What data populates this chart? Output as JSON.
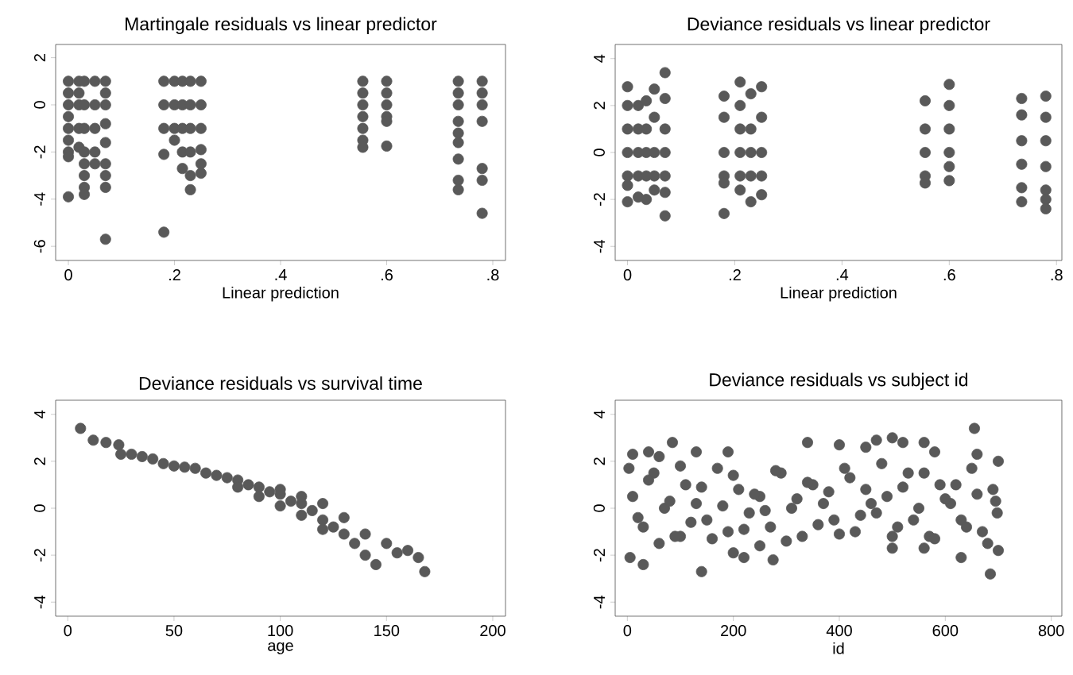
{
  "chart_data": [
    {
      "type": "scatter",
      "title": "Martingale residuals vs linear predictor",
      "xlabel": "Linear prediction",
      "color": "#595959",
      "xlim": [
        -0.024,
        0.824
      ],
      "ylim": [
        -6.6,
        2.56
      ],
      "xticks": [
        0,
        {
          "value": 0.2,
          "label": ".2"
        },
        {
          "value": 0.4,
          "label": ".4"
        },
        {
          "value": 0.6,
          "label": ".6"
        },
        {
          "value": 0.8,
          "label": ".8"
        }
      ],
      "yticks": [
        -6,
        -4,
        -2,
        0,
        2
      ],
      "x": [
        0,
        0,
        0,
        0,
        0,
        0,
        0,
        0,
        0,
        0.02,
        0.02,
        0.02,
        0.02,
        0.02,
        0.03,
        0.03,
        0.03,
        0.03,
        0.03,
        0.03,
        0.03,
        0.03,
        0.05,
        0.05,
        0.05,
        0.05,
        0.05,
        0.07,
        0.07,
        0.07,
        0.07,
        0.07,
        0.07,
        0.07,
        0.07,
        0.07,
        0.18,
        0.18,
        0.18,
        0.18,
        0.18,
        0.2,
        0.2,
        0.2,
        0.2,
        0.215,
        0.215,
        0.215,
        0.215,
        0.215,
        0.23,
        0.23,
        0.23,
        0.23,
        0.23,
        0.23,
        0.25,
        0.25,
        0.25,
        0.25,
        0.25,
        0.25,
        0.555,
        0.555,
        0.555,
        0.555,
        0.555,
        0.555,
        0.555,
        0.6,
        0.6,
        0.6,
        0.6,
        0.6,
        0.6,
        0.735,
        0.735,
        0.735,
        0.735,
        0.735,
        0.735,
        0.735,
        0.735,
        0.735,
        0.78,
        0.78,
        0.78,
        0.78,
        0.78,
        0.78,
        0.78
      ],
      "values": [
        1,
        0.5,
        0,
        -0.5,
        -1,
        -1.5,
        -2,
        -2.2,
        -3.9,
        1,
        0.5,
        0,
        -1,
        -1.8,
        1,
        0,
        -1,
        -2,
        -2.5,
        -3,
        -3.5,
        -3.8,
        1,
        0,
        -1,
        -2,
        -2.5,
        1,
        0.5,
        0,
        -0.8,
        -1.6,
        -2.5,
        -3,
        -3.5,
        -5.7,
        1,
        0,
        -1,
        -2.1,
        -5.4,
        1,
        0,
        -1,
        -1.5,
        1,
        0,
        -1,
        -2,
        -2.7,
        1,
        0,
        -1,
        -2,
        -3,
        -3.6,
        1,
        0,
        -1,
        -1.9,
        -2.5,
        -2.9,
        1,
        0.5,
        0,
        -0.5,
        -1,
        -1.5,
        -1.8,
        1,
        0.5,
        0,
        -0.5,
        -0.7,
        -1.75,
        1,
        0.5,
        0,
        -0.7,
        -1.2,
        -1.6,
        -2.3,
        -3.2,
        -3.6,
        1,
        0.5,
        0,
        -0.7,
        -2.7,
        -3.2,
        -4.6
      ]
    },
    {
      "type": "scatter",
      "title": "Deviance residuals vs linear predictor",
      "xlabel": "Linear prediction",
      "color": "#595959",
      "xlim": [
        -0.023,
        0.81
      ],
      "ylim": [
        -4.6,
        4.6
      ],
      "xticks": [
        0,
        {
          "value": 0.2,
          "label": ".2"
        },
        {
          "value": 0.4,
          "label": ".4"
        },
        {
          "value": 0.6,
          "label": ".6"
        },
        {
          "value": 0.8,
          "label": ".8"
        }
      ],
      "yticks": [
        -4,
        -2,
        0,
        2,
        4
      ],
      "x": [
        0,
        0,
        0,
        0,
        0,
        0,
        0,
        0.02,
        0.02,
        0.02,
        0.02,
        0.02,
        0.035,
        0.035,
        0.035,
        0.035,
        0.035,
        0.05,
        0.05,
        0.05,
        0.05,
        0.05,
        0.07,
        0.07,
        0.07,
        0.07,
        0.07,
        0.07,
        0.07,
        0.18,
        0.18,
        0.18,
        0.18,
        0.18,
        0.18,
        0.21,
        0.21,
        0.21,
        0.21,
        0.21,
        0.21,
        0.23,
        0.23,
        0.23,
        0.23,
        0.23,
        0.25,
        0.25,
        0.25,
        0.25,
        0.25,
        0.555,
        0.555,
        0.555,
        0.555,
        0.555,
        0.6,
        0.6,
        0.6,
        0.6,
        0.6,
        0.6,
        0.735,
        0.735,
        0.735,
        0.735,
        0.735,
        0.735,
        0.78,
        0.78,
        0.78,
        0.78,
        0.78,
        0.78,
        0.78
      ],
      "values": [
        2.8,
        2,
        1,
        0,
        -1,
        -1.4,
        -2.1,
        2,
        1,
        0,
        -1,
        -1.9,
        2.2,
        1,
        0,
        -1,
        -2,
        2.7,
        1.5,
        0,
        -1,
        -1.6,
        3.4,
        2.3,
        1,
        0,
        -1,
        -1.7,
        -2.7,
        2.4,
        1.5,
        0,
        -1,
        -1.3,
        -2.6,
        3,
        2,
        1,
        0,
        -1,
        -1.6,
        2.5,
        1,
        0,
        -1,
        -2.1,
        2.8,
        1.5,
        0,
        -1,
        -1.8,
        2.2,
        1,
        0,
        -1,
        -1.3,
        2.9,
        2,
        1,
        0,
        -0.6,
        -1.2,
        2.3,
        1.6,
        0.5,
        -0.5,
        -1.5,
        -2.1,
        2.4,
        1.5,
        0.5,
        -0.6,
        -1.6,
        -2,
        -2.4
      ]
    },
    {
      "type": "scatter",
      "title": "Deviance residuals vs survival time",
      "xlabel": "age",
      "color": "#595959",
      "xlim": [
        -5.7,
        206
      ],
      "ylim": [
        -4.6,
        4.6
      ],
      "xticks": [
        0,
        50,
        100,
        150,
        200
      ],
      "yticks": [
        -4,
        -2,
        0,
        2,
        4
      ],
      "x": [
        6,
        12,
        18,
        24,
        25,
        30,
        35,
        40,
        45,
        50,
        55,
        60,
        65,
        70,
        75,
        80,
        85,
        90,
        95,
        100,
        105,
        110,
        115,
        120,
        125,
        130,
        135,
        140,
        145,
        80,
        90,
        100,
        110,
        120,
        100,
        110,
        120,
        130,
        140,
        150,
        155,
        160,
        165,
        168
      ],
      "values": [
        3.4,
        2.9,
        2.8,
        2.7,
        2.3,
        2.3,
        2.2,
        2.1,
        1.9,
        1.8,
        1.75,
        1.7,
        1.5,
        1.4,
        1.3,
        1.2,
        1.0,
        0.9,
        0.7,
        0.6,
        0.3,
        0.2,
        -0.1,
        -0.5,
        -0.8,
        -1.1,
        -1.5,
        -2,
        -2.4,
        0.9,
        0.5,
        0.1,
        -0.3,
        -0.9,
        0.8,
        0.5,
        0.2,
        -0.4,
        -1.1,
        -1.5,
        -1.9,
        -1.8,
        -2.1,
        -2.7
      ]
    },
    {
      "type": "scatter",
      "title": "Deviance residuals vs subject id",
      "xlabel": "id",
      "color": "#595959",
      "xlim": [
        -23,
        820
      ],
      "ylim": [
        -4.6,
        4.6
      ],
      "xticks": [
        0,
        200,
        400,
        600,
        800
      ],
      "yticks": [
        -4,
        -2,
        0,
        2,
        4
      ],
      "x": [
        3,
        5,
        10,
        30,
        40,
        60,
        85,
        100,
        130,
        140,
        190,
        200,
        220,
        250,
        275,
        340,
        400,
        450,
        470,
        500,
        500,
        520,
        560,
        560,
        580,
        630,
        655,
        660,
        685,
        700,
        700,
        10,
        30,
        50,
        70,
        90,
        110,
        130,
        150,
        170,
        190,
        210,
        230,
        250,
        270,
        290,
        310,
        330,
        350,
        370,
        390,
        410,
        430,
        450,
        470,
        490,
        510,
        530,
        550,
        570,
        590,
        610,
        630,
        650,
        670,
        690,
        698,
        20,
        40,
        60,
        80,
        100,
        120,
        140,
        160,
        180,
        200,
        220,
        240,
        260,
        280,
        300,
        320,
        340,
        360,
        380,
        400,
        420,
        440,
        460,
        480,
        500,
        520,
        540,
        560,
        580,
        600,
        620,
        640,
        660,
        680,
        695
      ],
      "values": [
        1.7,
        -2.1,
        2.3,
        -2.4,
        2.4,
        2.2,
        2.8,
        -1.2,
        2.4,
        -2.7,
        2.4,
        -1.9,
        -2.1,
        -1.6,
        -2.2,
        2.8,
        2.7,
        2.6,
        2.9,
        3.0,
        -1.7,
        2.8,
        2.8,
        -1.7,
        2.4,
        -2.1,
        3.4,
        2.3,
        -2.8,
        2.0,
        -1.8,
        0.5,
        -0.8,
        1.5,
        0,
        -1.2,
        1,
        0.2,
        -0.5,
        1.7,
        -1,
        0.8,
        -0.2,
        0.5,
        -0.8,
        1.5,
        0,
        -1.2,
        1,
        0.2,
        -0.5,
        1.7,
        -1,
        0.8,
        -0.2,
        0.5,
        -0.8,
        1.5,
        0,
        -1.2,
        1,
        0.2,
        -0.5,
        1.7,
        -1,
        0.8,
        -0.2,
        -0.4,
        1.2,
        -1.5,
        0.3,
        1.8,
        -0.6,
        0.9,
        -1.3,
        0.1,
        1.4,
        -0.9,
        0.6,
        -0.1,
        1.6,
        -1.4,
        0.4,
        1.1,
        -0.7,
        0.7,
        -1.1,
        1.3,
        -0.3,
        0.2,
        1.9,
        -1.2,
        0.9,
        -0.5,
        1.5,
        -1.3,
        0.4,
        1.0,
        -0.8,
        0.6,
        -1.5,
        0.3
      ]
    }
  ]
}
